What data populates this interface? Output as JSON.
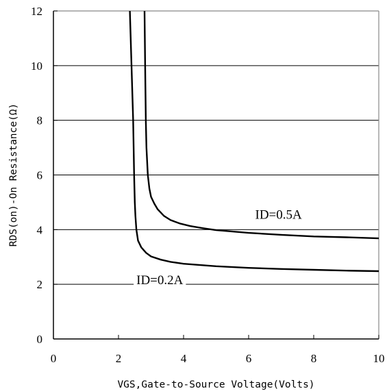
{
  "chart_data": {
    "type": "line",
    "title": "",
    "xlabel": "VGS,Gate-to-Source Voltage(Volts)",
    "ylabel": "RDS(on)-On Resistance(Ω)",
    "xlim": [
      0,
      10
    ],
    "ylim": [
      0,
      12
    ],
    "xticks": [
      "0",
      "2",
      "4",
      "6",
      "8",
      "10"
    ],
    "yticks": [
      "0",
      "2",
      "4",
      "6",
      "8",
      "10",
      "12"
    ],
    "grid": "horizontal",
    "legend": "none",
    "series": [
      {
        "name": "ID=0.2A",
        "x": [
          2.35,
          2.4,
          2.45,
          2.48,
          2.5,
          2.52,
          2.55,
          2.6,
          2.7,
          2.85,
          3.0,
          3.3,
          3.6,
          4.0,
          5.0,
          6.0,
          7.0,
          8.0,
          9.0,
          10.0
        ],
        "y": [
          12.0,
          10.0,
          8.0,
          6.0,
          5.0,
          4.5,
          4.0,
          3.6,
          3.35,
          3.15,
          3.02,
          2.9,
          2.82,
          2.75,
          2.66,
          2.6,
          2.56,
          2.53,
          2.5,
          2.48
        ]
      },
      {
        "name": "ID=0.5A",
        "x": [
          2.8,
          2.82,
          2.84,
          2.86,
          2.88,
          2.9,
          2.95,
          3.0,
          3.1,
          3.2,
          3.4,
          3.6,
          3.9,
          4.2,
          4.6,
          5.0,
          6.0,
          7.0,
          8.0,
          9.0,
          10.0
        ],
        "y": [
          12.0,
          10.0,
          8.0,
          7.0,
          6.5,
          6.0,
          5.5,
          5.2,
          4.95,
          4.75,
          4.5,
          4.35,
          4.22,
          4.13,
          4.05,
          3.98,
          3.88,
          3.81,
          3.75,
          3.72,
          3.68
        ]
      }
    ],
    "annotations": [
      {
        "text": "ID=0.5A",
        "x": 6.2,
        "y": 4.4
      },
      {
        "text": "ID=0.2A",
        "x": 2.55,
        "y": 2.0
      }
    ]
  }
}
